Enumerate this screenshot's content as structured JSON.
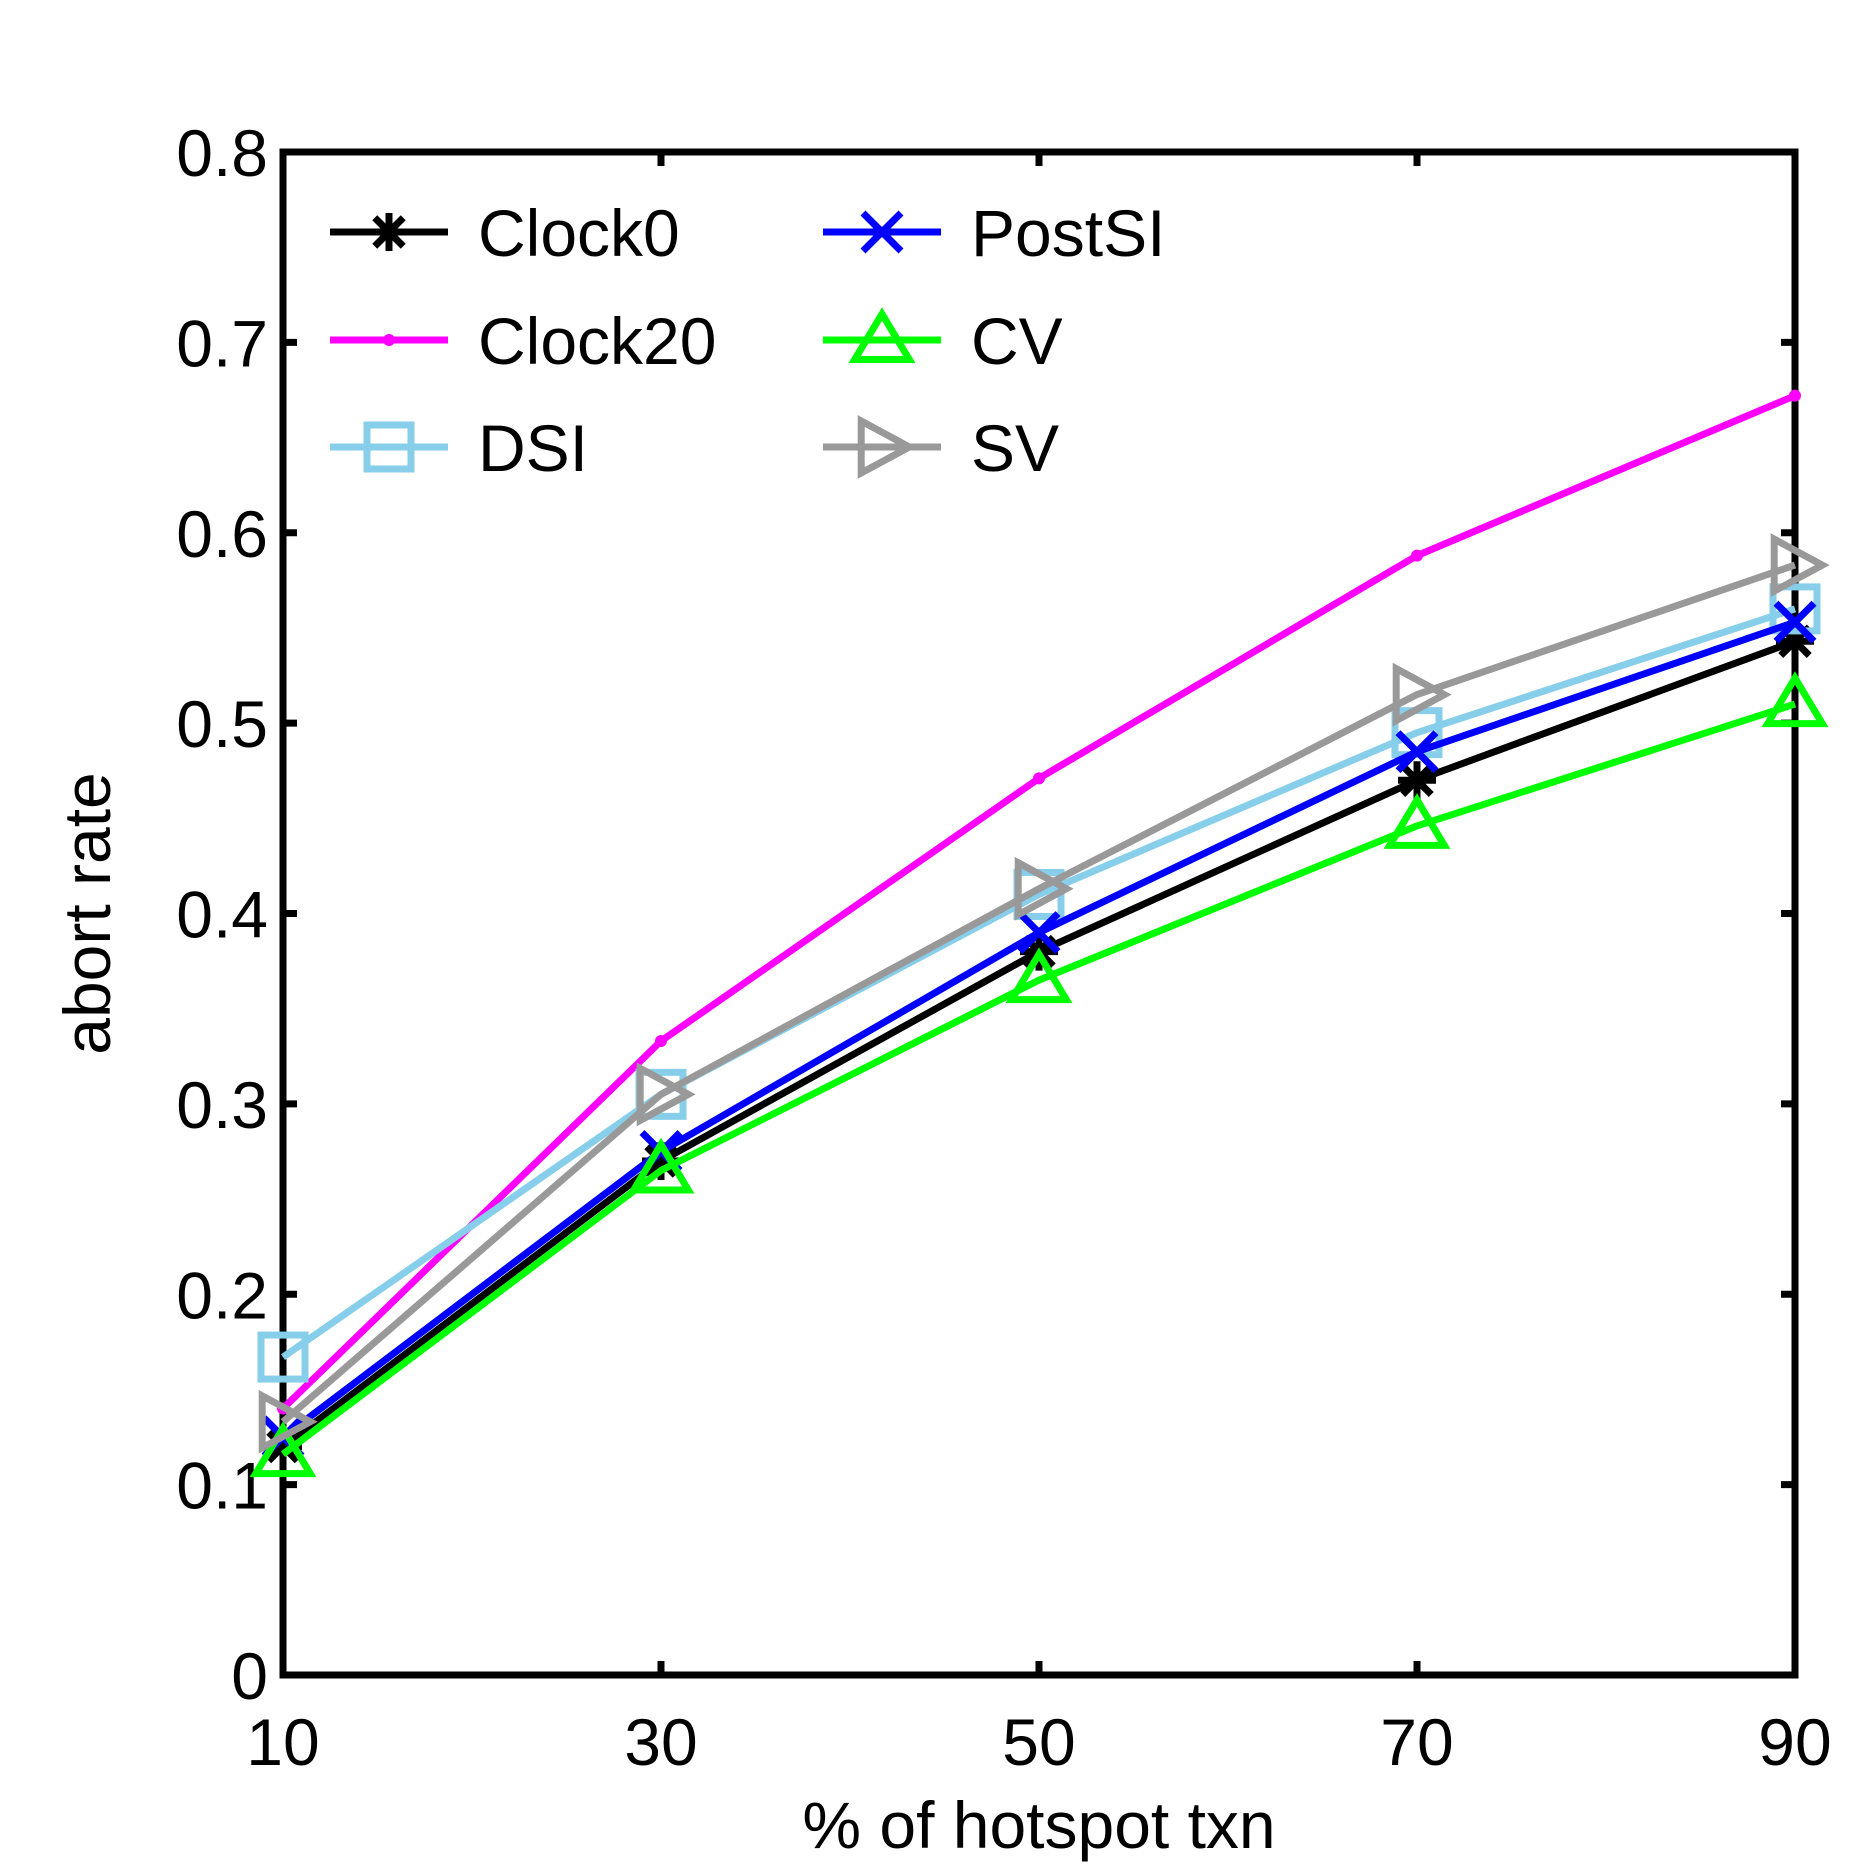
{
  "chart_data": {
    "type": "line",
    "title": "",
    "xlabel": "% of hotspot txn",
    "ylabel": "abort rate",
    "x": [
      10,
      30,
      50,
      70,
      90
    ],
    "xlim": [
      10,
      90
    ],
    "ylim": [
      0,
      0.8
    ],
    "x_ticks": [
      10,
      30,
      50,
      70,
      90
    ],
    "x_tick_labels": [
      "10",
      "30",
      "50",
      "70",
      "90"
    ],
    "y_ticks": [
      0,
      0.1,
      0.2,
      0.3,
      0.4,
      0.5,
      0.6,
      0.7,
      0.8
    ],
    "y_tick_labels": [
      "0",
      "0.1",
      "0.2",
      "0.3",
      "0.4",
      "0.5",
      "0.6",
      "0.7",
      "0.8"
    ],
    "grid": false,
    "legend_position": "top-left",
    "series": [
      {
        "name": "Clock0",
        "color": "#000000",
        "marker": "asterisk",
        "values": [
          0.12,
          0.27,
          0.38,
          0.47,
          0.543
        ]
      },
      {
        "name": "Clock20",
        "color": "#ff00ff",
        "marker": "dot",
        "values": [
          0.14,
          0.333,
          0.471,
          0.588,
          0.672
        ]
      },
      {
        "name": "DSI",
        "color": "#87ceeb",
        "marker": "square",
        "values": [
          0.167,
          0.305,
          0.41,
          0.495,
          0.56
        ]
      },
      {
        "name": "PostSI",
        "color": "#0000ff",
        "marker": "x",
        "values": [
          0.125,
          0.275,
          0.39,
          0.485,
          0.553
        ]
      },
      {
        "name": "CV",
        "color": "#00ff00",
        "marker": "triangle",
        "values": [
          0.116,
          0.265,
          0.365,
          0.446,
          0.51
        ]
      },
      {
        "name": "SV",
        "color": "#999999",
        "marker": "triangle-right",
        "values": [
          0.133,
          0.305,
          0.413,
          0.515,
          0.583
        ]
      }
    ]
  }
}
